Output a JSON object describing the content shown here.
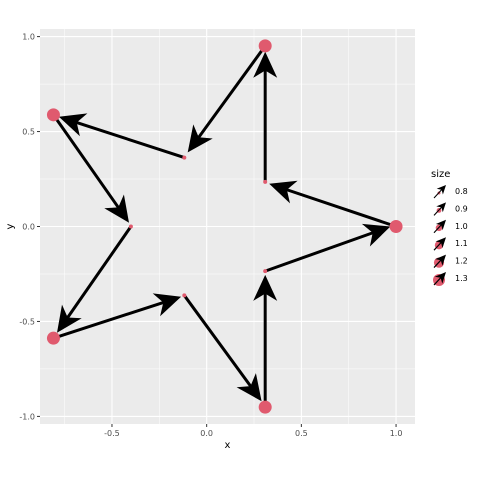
{
  "chart_data": {
    "type": "scatter",
    "title": "",
    "xlabel": "x",
    "ylabel": "y",
    "xlim": [
      -0.88,
      1.1
    ],
    "ylim": [
      -1.04,
      1.04
    ],
    "x_ticks": [
      -0.5,
      0.0,
      0.5,
      1.0
    ],
    "x_tick_labels": [
      "-0.5",
      "0.0",
      "0.5",
      "1.0"
    ],
    "y_ticks": [
      -1.0,
      -0.5,
      0.0,
      0.5,
      1.0
    ],
    "y_tick_labels": [
      "-1.0",
      "-0.5",
      "0.0",
      "0.5",
      "1.0"
    ],
    "grid": true,
    "points": [
      {
        "x": 1.0,
        "y": 0.0,
        "size": 1.3
      },
      {
        "x": 0.309,
        "y": 0.235,
        "size": 0.8
      },
      {
        "x": 0.309,
        "y": 0.951,
        "size": 1.3
      },
      {
        "x": -0.118,
        "y": 0.363,
        "size": 0.8
      },
      {
        "x": -0.809,
        "y": 0.588,
        "size": 1.3
      },
      {
        "x": -0.4,
        "y": 0.0,
        "size": 0.8
      },
      {
        "x": -0.809,
        "y": -0.588,
        "size": 1.3
      },
      {
        "x": -0.118,
        "y": -0.363,
        "size": 0.8
      },
      {
        "x": 0.309,
        "y": -0.951,
        "size": 1.3
      },
      {
        "x": 0.309,
        "y": -0.235,
        "size": 0.8
      }
    ],
    "arrows": [
      {
        "x1": 1.0,
        "y1": 0.0,
        "x2": 0.33,
        "y2": 0.225,
        "size": 1.3
      },
      {
        "x1": 0.309,
        "y1": 0.235,
        "x2": 0.309,
        "y2": 0.92,
        "size": 1.3
      },
      {
        "x1": 0.309,
        "y1": 0.951,
        "x2": -0.1,
        "y2": 0.39,
        "size": 1.3
      },
      {
        "x1": -0.118,
        "y1": 0.363,
        "x2": -0.78,
        "y2": 0.578,
        "size": 1.3
      },
      {
        "x1": -0.809,
        "y1": 0.588,
        "x2": -0.41,
        "y2": 0.02,
        "size": 1.3
      },
      {
        "x1": -0.4,
        "y1": 0.0,
        "x2": -0.79,
        "y2": -0.56,
        "size": 1.3
      },
      {
        "x1": -0.809,
        "y1": -0.588,
        "x2": -0.135,
        "y2": -0.37,
        "size": 1.3
      },
      {
        "x1": -0.118,
        "y1": -0.363,
        "x2": 0.29,
        "y2": -0.92,
        "size": 1.3
      },
      {
        "x1": 0.309,
        "y1": -0.951,
        "x2": 0.309,
        "y2": -0.255,
        "size": 1.3
      },
      {
        "x1": 0.309,
        "y1": -0.235,
        "x2": 0.97,
        "y2": 0.0,
        "size": 1.3
      }
    ],
    "legend": {
      "title": "size",
      "position": "right",
      "entries": [
        "0.8",
        "0.9",
        "1.0",
        "1.1",
        "1.2",
        "1.3"
      ],
      "sizes": [
        0.8,
        0.9,
        1.0,
        1.1,
        1.2,
        1.3
      ]
    },
    "colors": {
      "point": "#e05a6e",
      "arrow": "#000000",
      "panel": "#ebebeb",
      "grid": "#ffffff"
    }
  }
}
